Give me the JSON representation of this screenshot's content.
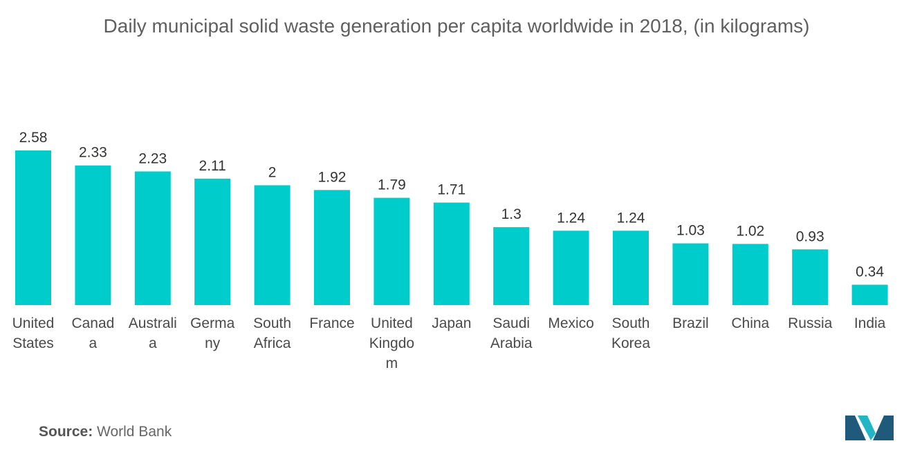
{
  "chart_data": {
    "type": "bar",
    "title": "Daily municipal solid waste generation per capita worldwide in 2018, (in kilograms)",
    "categories": [
      [
        "United",
        "States"
      ],
      [
        "Canad",
        "a"
      ],
      [
        "Australi",
        "a"
      ],
      [
        "Germa",
        "ny"
      ],
      [
        "South",
        "Africa"
      ],
      [
        "France"
      ],
      [
        "United",
        "Kingdo",
        "m"
      ],
      [
        "Japan"
      ],
      [
        "Saudi",
        "Arabia"
      ],
      [
        "Mexico"
      ],
      [
        "South",
        "Korea"
      ],
      [
        "Brazil"
      ],
      [
        "China"
      ],
      [
        "Russia"
      ],
      [
        "India"
      ]
    ],
    "values": [
      2.58,
      2.33,
      2.23,
      2.11,
      2,
      1.92,
      1.79,
      1.71,
      1.3,
      1.24,
      1.24,
      1.03,
      1.02,
      0.93,
      0.34
    ],
    "value_labels": [
      "2.58",
      "2.33",
      "2.23",
      "2.11",
      "2",
      "1.92",
      "1.79",
      "1.71",
      "1.3",
      "1.24",
      "1.24",
      "1.03",
      "1.02",
      "0.93",
      "0.34"
    ],
    "xlabel": "",
    "ylabel": "",
    "ylim": [
      0,
      2.58
    ],
    "grid": false,
    "bar_color": "#00CCCC"
  },
  "source": {
    "label": "Source:",
    "value": "World Bank"
  },
  "logo": {
    "name": "mordor-intelligence-logo",
    "colors": [
      "#1F5A7A",
      "#22B5C6"
    ]
  }
}
